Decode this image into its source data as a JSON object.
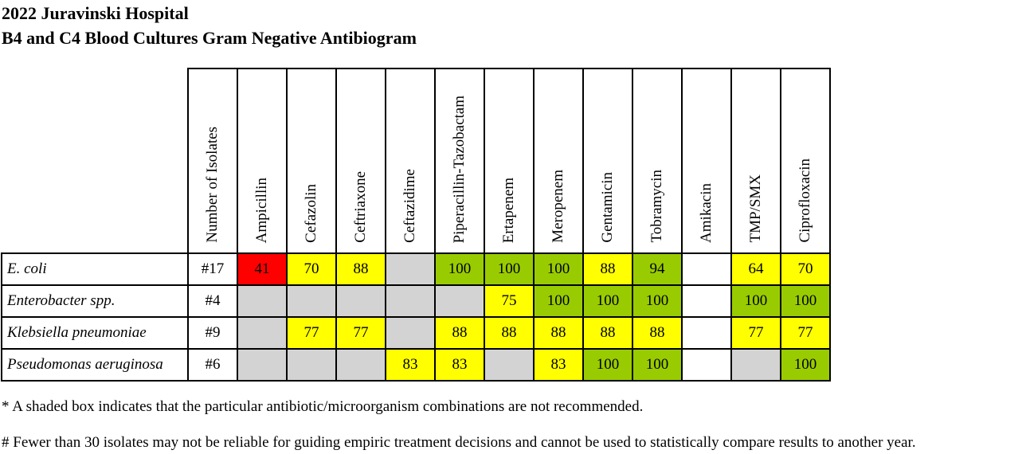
{
  "title_line1": "2022 Juravinski Hospital",
  "title_line2": "B4 and C4 Blood Cultures Gram Negative Antibiogram",
  "columns": {
    "isolates": "Number of Isolates",
    "ampicillin": "Ampicillin",
    "cefazolin": "Cefazolin",
    "ceftriaxone": "Ceftriaxone",
    "ceftazidime": "Ceftazidime",
    "pip_tazo": "Piperacillin-Tazobactam",
    "ertapenem": "Ertapenem",
    "meropenem": "Meropenem",
    "gentamicin": "Gentamicin",
    "tobramycin": "Tobramycin",
    "amikacin": "Amikacin",
    "tmp_smx": "TMP/SMX",
    "ciprofloxacin": "Ciprofloxacin"
  },
  "rows": [
    {
      "organism": "E. coli",
      "isolates": "#17",
      "cells": [
        {
          "value": "41",
          "shade": "red"
        },
        {
          "value": "70",
          "shade": "yellow"
        },
        {
          "value": "88",
          "shade": "yellow"
        },
        {
          "value": "",
          "shade": "grey"
        },
        {
          "value": "100",
          "shade": "green"
        },
        {
          "value": "100",
          "shade": "green"
        },
        {
          "value": "100",
          "shade": "green"
        },
        {
          "value": "88",
          "shade": "yellow"
        },
        {
          "value": "94",
          "shade": "green"
        },
        {
          "value": "",
          "shade": "white"
        },
        {
          "value": "64",
          "shade": "yellow"
        },
        {
          "value": "70",
          "shade": "yellow"
        }
      ]
    },
    {
      "organism": "Enterobacter spp.",
      "isolates": "#4",
      "cells": [
        {
          "value": "",
          "shade": "grey"
        },
        {
          "value": "",
          "shade": "grey"
        },
        {
          "value": "",
          "shade": "grey"
        },
        {
          "value": "",
          "shade": "grey"
        },
        {
          "value": "",
          "shade": "grey"
        },
        {
          "value": "75",
          "shade": "yellow"
        },
        {
          "value": "100",
          "shade": "green"
        },
        {
          "value": "100",
          "shade": "green"
        },
        {
          "value": "100",
          "shade": "green"
        },
        {
          "value": "",
          "shade": "white"
        },
        {
          "value": "100",
          "shade": "green"
        },
        {
          "value": "100",
          "shade": "green"
        }
      ]
    },
    {
      "organism": "Klebsiella pneumoniae",
      "isolates": "#9",
      "cells": [
        {
          "value": "",
          "shade": "grey"
        },
        {
          "value": "77",
          "shade": "yellow"
        },
        {
          "value": "77",
          "shade": "yellow"
        },
        {
          "value": "",
          "shade": "grey"
        },
        {
          "value": "88",
          "shade": "yellow"
        },
        {
          "value": "88",
          "shade": "yellow"
        },
        {
          "value": "88",
          "shade": "yellow"
        },
        {
          "value": "88",
          "shade": "yellow"
        },
        {
          "value": "88",
          "shade": "yellow"
        },
        {
          "value": "",
          "shade": "white"
        },
        {
          "value": "77",
          "shade": "yellow"
        },
        {
          "value": "77",
          "shade": "yellow"
        }
      ]
    },
    {
      "organism": "Pseudomonas aeruginosa",
      "isolates": "#6",
      "cells": [
        {
          "value": "",
          "shade": "grey"
        },
        {
          "value": "",
          "shade": "grey"
        },
        {
          "value": "",
          "shade": "grey"
        },
        {
          "value": "83",
          "shade": "yellow"
        },
        {
          "value": "83",
          "shade": "yellow"
        },
        {
          "value": "",
          "shade": "grey"
        },
        {
          "value": "83",
          "shade": "yellow"
        },
        {
          "value": "100",
          "shade": "green"
        },
        {
          "value": "100",
          "shade": "green"
        },
        {
          "value": "",
          "shade": "white"
        },
        {
          "value": "",
          "shade": "grey"
        },
        {
          "value": "100",
          "shade": "green"
        }
      ]
    }
  ],
  "shade_colors": {
    "red": "#ff0000",
    "yellow": "#ffff00",
    "green": "#99cc00",
    "grey": "#d3d3d3",
    "white": "#ffffff"
  },
  "footnote1": "* A shaded box indicates that the particular antibiotic/microorganism combinations are not recommended.",
  "footnote2": "# Fewer than 30 isolates may not be reliable for guiding empiric treatment decisions and cannot be used to statistically compare results to another year."
}
